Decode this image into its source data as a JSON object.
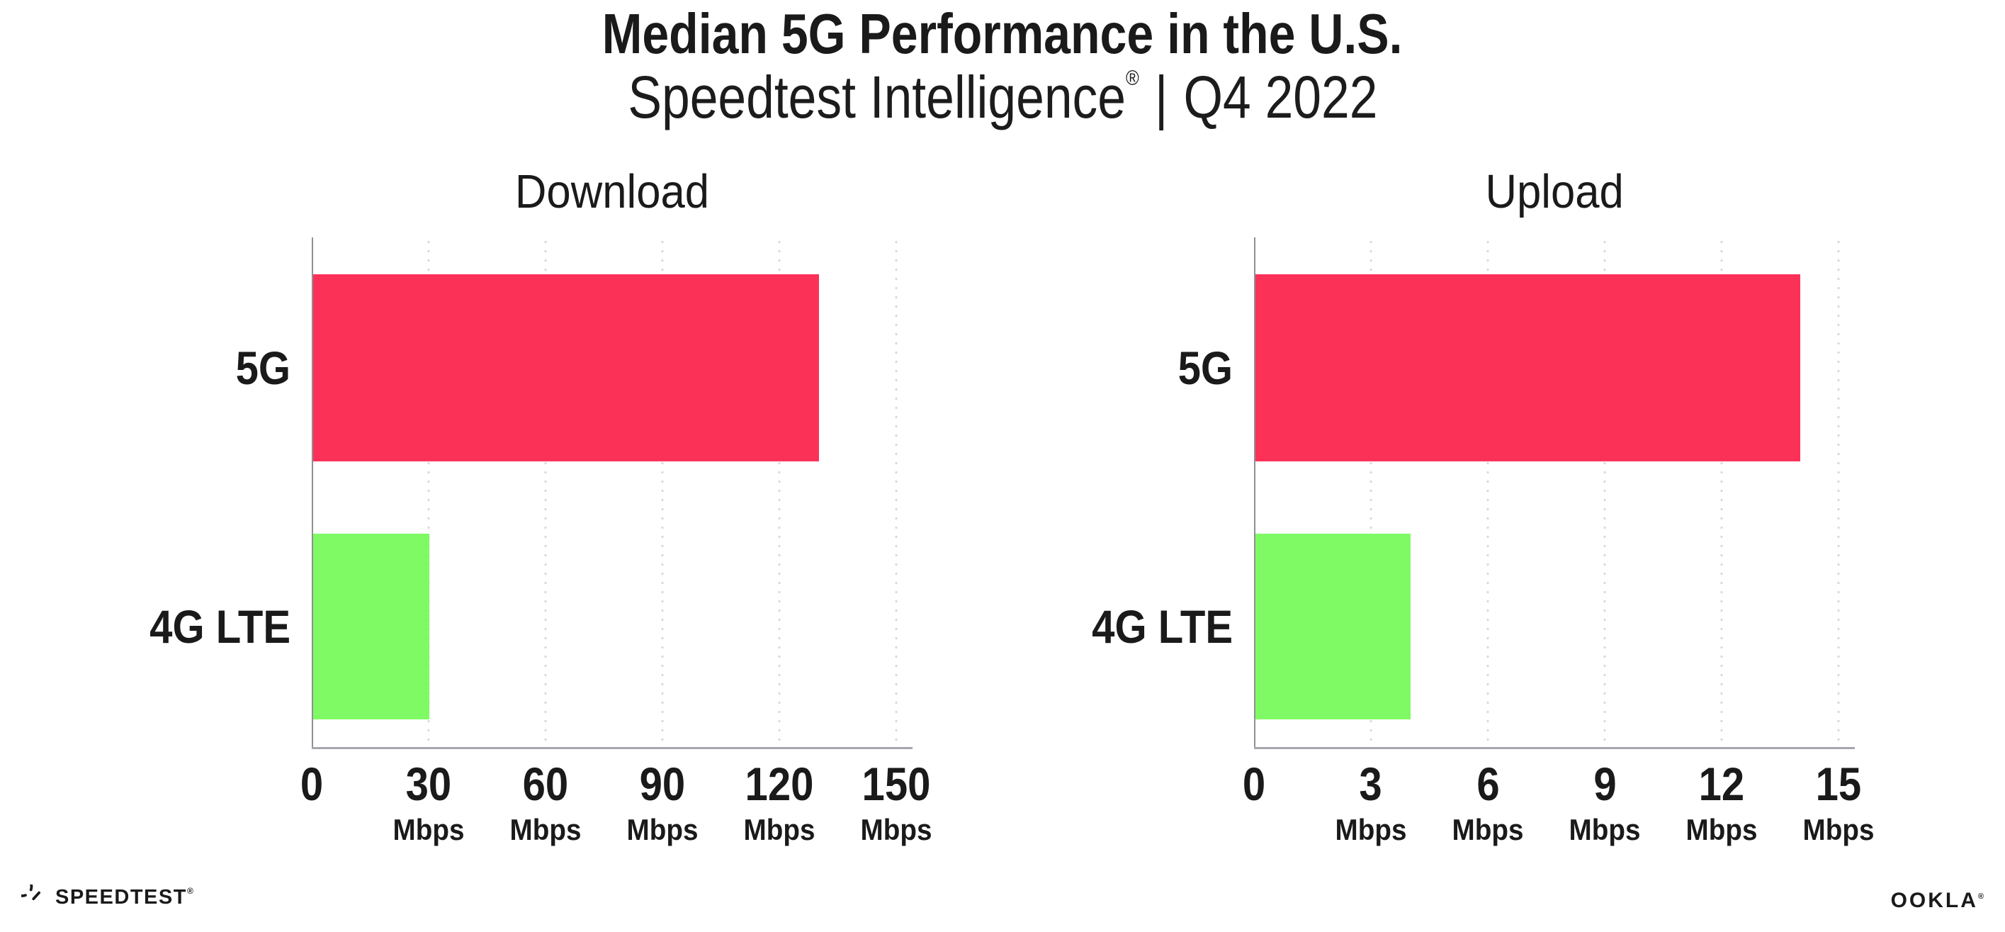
{
  "header": {
    "title": "Median 5G Performance in the U.S.",
    "subtitle": {
      "product": "Speedtest Intelligence",
      "reg": "®",
      "separator": "|",
      "period": "Q4 2022"
    }
  },
  "chart_data": [
    {
      "type": "bar",
      "orientation": "horizontal",
      "title": "Download",
      "categories": [
        "5G",
        "4G LTE"
      ],
      "values": [
        130,
        30
      ],
      "unit": "Mbps",
      "xlim": [
        0,
        150
      ],
      "xticks": [
        0,
        30,
        60,
        90,
        120,
        150
      ],
      "xtick_unit": "Mbps",
      "bar_colors": [
        "#fc3158",
        "#7ffa64"
      ],
      "grid": "vertical-dotted",
      "legend": "none"
    },
    {
      "type": "bar",
      "orientation": "horizontal",
      "title": "Upload",
      "categories": [
        "5G",
        "4G LTE"
      ],
      "values": [
        14,
        4
      ],
      "unit": "Mbps",
      "xlim": [
        0,
        15
      ],
      "xticks": [
        0,
        3,
        6,
        9,
        12,
        15
      ],
      "xtick_unit": "Mbps",
      "bar_colors": [
        "#fc3158",
        "#7ffa64"
      ],
      "grid": "vertical-dotted",
      "legend": "none"
    }
  ],
  "footer": {
    "speedtest_logo_text": "SPEEDTEST",
    "speedtest_reg": "®",
    "ookla_logo_text": "OOKLA",
    "ookla_reg": "®"
  },
  "colors": {
    "bar_5g": "#fc3158",
    "bar_4g_lte": "#7ffa64",
    "axis": "#9a9aa0",
    "gridline": "#d8d8e1",
    "text": "#1a1a1a"
  }
}
